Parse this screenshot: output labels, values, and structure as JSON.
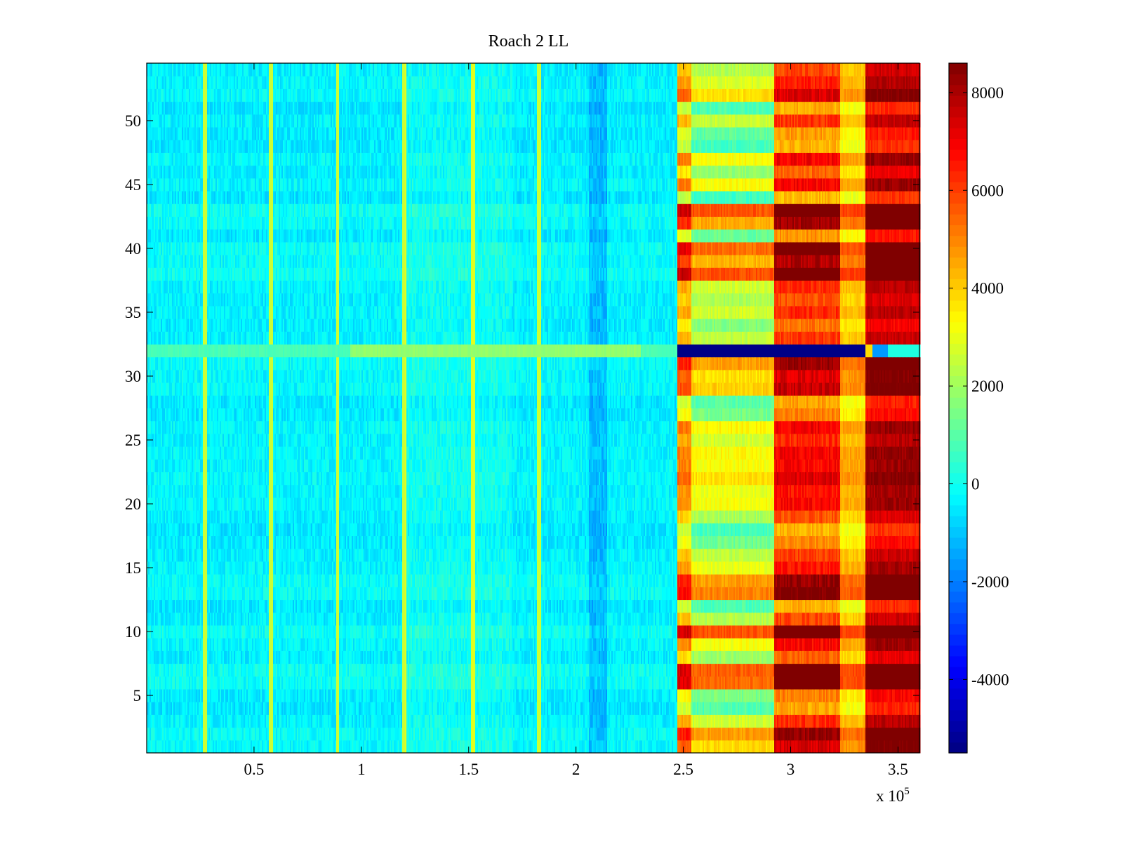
{
  "chart_data": {
    "type": "heatmap",
    "title": "Roach 2 LL",
    "xlabel": "",
    "ylabel": "",
    "x_exponent_label": "x 10",
    "x_exponent_power": "5",
    "xlim": [
      0,
      360000
    ],
    "ylim": [
      0.5,
      54.5
    ],
    "x_ticks": [
      50000,
      100000,
      150000,
      200000,
      250000,
      300000,
      350000
    ],
    "x_tick_labels": [
      "0.5",
      "1",
      "1.5",
      "2",
      "2.5",
      "3",
      "3.5"
    ],
    "y_ticks": [
      5,
      10,
      15,
      20,
      25,
      30,
      35,
      40,
      45,
      50
    ],
    "y_tick_labels": [
      "5",
      "10",
      "15",
      "20",
      "25",
      "30",
      "35",
      "40",
      "45",
      "50"
    ],
    "colormap": "jet",
    "clim": [
      -5500,
      8600
    ],
    "colorbar_ticks": [
      -4000,
      -2000,
      0,
      2000,
      4000,
      6000,
      8000
    ],
    "colorbar_tick_labels": [
      "-4000",
      "-2000",
      "0",
      "2000",
      "4000",
      "6000",
      "8000"
    ],
    "bright_column_x": [
      27000,
      58000,
      89000,
      120000,
      152000,
      183000
    ],
    "dark_column_x": [
      208000,
      212000
    ],
    "region_boundaries_x": [
      247000,
      292000,
      323000,
      335000
    ],
    "region_mean_values": {
      "low_region": -300,
      "region_a": 3200,
      "region_b": 6800,
      "region_c": 4500,
      "region_d": 8200
    },
    "anomalous_row": {
      "y": 32,
      "left_value": 800,
      "right_value": -5400,
      "tail_values": [
        3800,
        -1600,
        200
      ]
    },
    "grid": false
  }
}
